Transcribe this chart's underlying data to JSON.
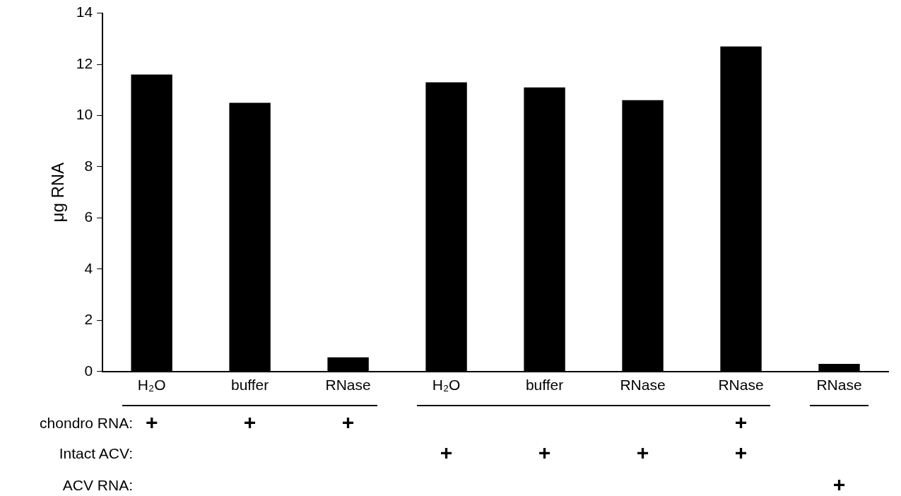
{
  "chart_data": {
    "type": "bar",
    "ylabel": "μg RNA",
    "categories": [
      "H₂O",
      "buffer",
      "RNase",
      "H₂O",
      "buffer",
      "RNase",
      "RNase",
      "RNase"
    ],
    "values": [
      11.6,
      10.5,
      0.55,
      11.3,
      11.1,
      10.6,
      12.7,
      0.3
    ],
    "color": "#000000",
    "ylim": [
      0,
      14
    ],
    "yticks": [
      0,
      2,
      4,
      6,
      8,
      10,
      12,
      14
    ],
    "grid": false,
    "legend": false,
    "annotations": [
      "chondro RNA:",
      "Intact ACV:",
      "ACV RNA:",
      "+",
      "+",
      "+",
      "+",
      "+",
      "+",
      "+",
      "+",
      "+"
    ]
  }
}
